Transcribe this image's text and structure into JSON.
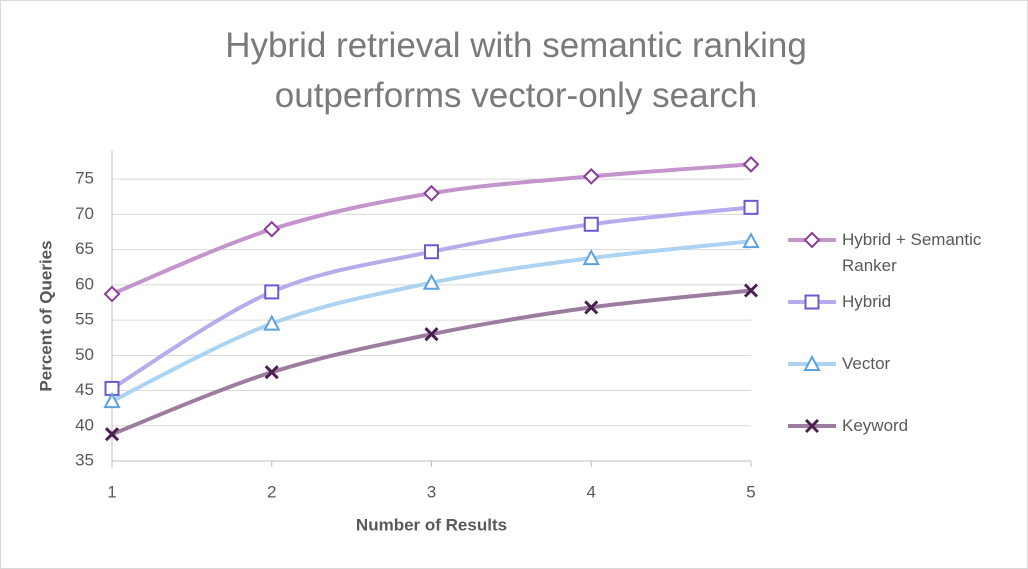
{
  "chart_data": {
    "type": "line",
    "title": "Hybrid retrieval with semantic ranking outperforms vector-only search",
    "x_label": "Number of Results",
    "y_label": "Percent of Queries",
    "x": [
      1,
      2,
      3,
      4,
      5
    ],
    "xlim": [
      1,
      5
    ],
    "xticks": [
      1,
      2,
      3,
      4,
      5
    ],
    "ylim": [
      35,
      79
    ],
    "yticks": [
      35,
      40,
      45,
      50,
      55,
      60,
      65,
      70,
      75
    ],
    "grid": true,
    "smooth": true,
    "legend": "right",
    "series": [
      {
        "name": "Hybrid + Semantic Ranker",
        "color": "#c495cc",
        "marker_color": "#8b3b9b",
        "marker": "diamond",
        "values": [
          58.7,
          67.9,
          73,
          75.4,
          77.1
        ]
      },
      {
        "name": "Hybrid",
        "color": "#b6acec",
        "marker_color": "#6a5ad2",
        "marker": "square",
        "values": [
          45.3,
          59,
          64.7,
          68.6,
          71
        ]
      },
      {
        "name": "Vector",
        "color": "#acd3f2",
        "marker_color": "#5aa2e2",
        "marker": "triangle",
        "values": [
          43.5,
          54.5,
          60.3,
          63.8,
          66.2
        ]
      },
      {
        "name": "Keyword",
        "color": "#9c7c9f",
        "marker_color": "#4a1f50",
        "marker": "x",
        "values": [
          38.8,
          47.6,
          53,
          56.8,
          59.2
        ]
      }
    ]
  }
}
